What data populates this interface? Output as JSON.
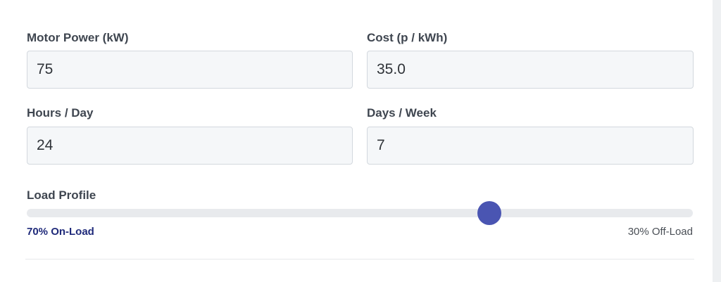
{
  "form": {
    "motor_power": {
      "label": "Motor Power (kW)",
      "value": "75"
    },
    "cost": {
      "label": "Cost (p / kWh)",
      "value": "35.0"
    },
    "hours_per_day": {
      "label": "Hours / Day",
      "value": "24"
    },
    "days_per_week": {
      "label": "Days / Week",
      "value": "7"
    }
  },
  "load_profile": {
    "label": "Load Profile",
    "min_label": "70% On-Load",
    "max_label": "30% Off-Load",
    "level_fraction": 0.695,
    "colors": {
      "thumb": "#4a55b2",
      "track": "#e8eaed",
      "min_label": "#1f2a7a",
      "max_label": "#4a4f56"
    }
  }
}
